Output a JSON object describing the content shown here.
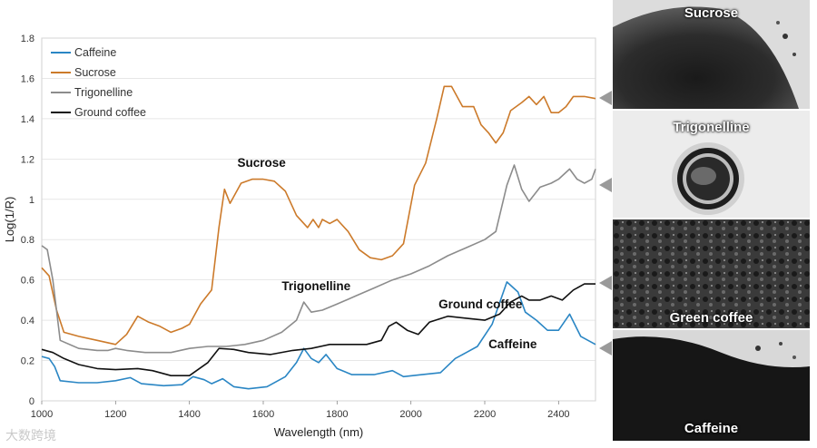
{
  "chart_data": {
    "type": "line",
    "xlabel": "Wavelength (nm)",
    "ylabel": "Log(1/R)",
    "xlim": [
      1000,
      2500
    ],
    "ylim": [
      0,
      1.8
    ],
    "xticks": [
      1000,
      1200,
      1400,
      1600,
      1800,
      2000,
      2200,
      2400
    ],
    "yticks": [
      0,
      0.2,
      0.4,
      0.6,
      0.8,
      1,
      1.2,
      1.4,
      1.6,
      1.8
    ],
    "ytick_labels": [
      "0",
      "0.2",
      "0.4",
      "0.6",
      "0.8",
      "1",
      "1.2",
      "1.4",
      "1.6",
      "1.8"
    ],
    "legend_position": "top-left",
    "series": [
      {
        "name": "Caffeine",
        "color": "#2a86c4",
        "points": [
          [
            1000,
            0.22
          ],
          [
            1020,
            0.21
          ],
          [
            1035,
            0.17
          ],
          [
            1050,
            0.1
          ],
          [
            1100,
            0.09
          ],
          [
            1150,
            0.09
          ],
          [
            1200,
            0.1
          ],
          [
            1240,
            0.115
          ],
          [
            1270,
            0.085
          ],
          [
            1330,
            0.075
          ],
          [
            1380,
            0.08
          ],
          [
            1410,
            0.12
          ],
          [
            1440,
            0.105
          ],
          [
            1460,
            0.085
          ],
          [
            1490,
            0.11
          ],
          [
            1520,
            0.07
          ],
          [
            1560,
            0.06
          ],
          [
            1610,
            0.07
          ],
          [
            1660,
            0.12
          ],
          [
            1690,
            0.19
          ],
          [
            1710,
            0.26
          ],
          [
            1730,
            0.21
          ],
          [
            1750,
            0.19
          ],
          [
            1770,
            0.23
          ],
          [
            1800,
            0.16
          ],
          [
            1840,
            0.13
          ],
          [
            1900,
            0.13
          ],
          [
            1950,
            0.15
          ],
          [
            1980,
            0.12
          ],
          [
            2030,
            0.13
          ],
          [
            2080,
            0.14
          ],
          [
            2120,
            0.21
          ],
          [
            2150,
            0.24
          ],
          [
            2180,
            0.27
          ],
          [
            2220,
            0.38
          ],
          [
            2260,
            0.59
          ],
          [
            2290,
            0.54
          ],
          [
            2310,
            0.44
          ],
          [
            2340,
            0.4
          ],
          [
            2370,
            0.35
          ],
          [
            2400,
            0.35
          ],
          [
            2430,
            0.43
          ],
          [
            2460,
            0.32
          ],
          [
            2500,
            0.28
          ]
        ]
      },
      {
        "name": "Sucrose",
        "color": "#cc7a2a",
        "points": [
          [
            1000,
            0.66
          ],
          [
            1020,
            0.62
          ],
          [
            1040,
            0.45
          ],
          [
            1060,
            0.34
          ],
          [
            1100,
            0.32
          ],
          [
            1150,
            0.3
          ],
          [
            1200,
            0.28
          ],
          [
            1230,
            0.33
          ],
          [
            1260,
            0.42
          ],
          [
            1290,
            0.39
          ],
          [
            1320,
            0.37
          ],
          [
            1350,
            0.34
          ],
          [
            1380,
            0.36
          ],
          [
            1400,
            0.38
          ],
          [
            1430,
            0.48
          ],
          [
            1460,
            0.55
          ],
          [
            1480,
            0.86
          ],
          [
            1495,
            1.05
          ],
          [
            1510,
            0.98
          ],
          [
            1540,
            1.08
          ],
          [
            1570,
            1.1
          ],
          [
            1600,
            1.1
          ],
          [
            1630,
            1.09
          ],
          [
            1660,
            1.04
          ],
          [
            1690,
            0.92
          ],
          [
            1720,
            0.86
          ],
          [
            1735,
            0.9
          ],
          [
            1750,
            0.86
          ],
          [
            1760,
            0.9
          ],
          [
            1780,
            0.88
          ],
          [
            1800,
            0.9
          ],
          [
            1830,
            0.84
          ],
          [
            1860,
            0.75
          ],
          [
            1890,
            0.71
          ],
          [
            1920,
            0.7
          ],
          [
            1950,
            0.72
          ],
          [
            1980,
            0.78
          ],
          [
            2010,
            1.07
          ],
          [
            2040,
            1.18
          ],
          [
            2070,
            1.4
          ],
          [
            2090,
            1.56
          ],
          [
            2110,
            1.56
          ],
          [
            2140,
            1.46
          ],
          [
            2170,
            1.46
          ],
          [
            2190,
            1.37
          ],
          [
            2210,
            1.33
          ],
          [
            2230,
            1.28
          ],
          [
            2250,
            1.33
          ],
          [
            2270,
            1.44
          ],
          [
            2300,
            1.48
          ],
          [
            2320,
            1.51
          ],
          [
            2340,
            1.47
          ],
          [
            2360,
            1.51
          ],
          [
            2380,
            1.43
          ],
          [
            2400,
            1.43
          ],
          [
            2420,
            1.46
          ],
          [
            2440,
            1.51
          ],
          [
            2470,
            1.51
          ],
          [
            2500,
            1.5
          ]
        ]
      },
      {
        "name": "Trigonelline",
        "color": "#8c8c8c",
        "points": [
          [
            1000,
            0.77
          ],
          [
            1015,
            0.75
          ],
          [
            1030,
            0.6
          ],
          [
            1050,
            0.3
          ],
          [
            1100,
            0.26
          ],
          [
            1150,
            0.25
          ],
          [
            1180,
            0.25
          ],
          [
            1200,
            0.26
          ],
          [
            1230,
            0.25
          ],
          [
            1280,
            0.24
          ],
          [
            1350,
            0.24
          ],
          [
            1400,
            0.26
          ],
          [
            1450,
            0.27
          ],
          [
            1500,
            0.27
          ],
          [
            1550,
            0.28
          ],
          [
            1600,
            0.3
          ],
          [
            1650,
            0.34
          ],
          [
            1690,
            0.4
          ],
          [
            1710,
            0.49
          ],
          [
            1730,
            0.44
          ],
          [
            1760,
            0.45
          ],
          [
            1800,
            0.48
          ],
          [
            1850,
            0.52
          ],
          [
            1900,
            0.56
          ],
          [
            1950,
            0.6
          ],
          [
            2000,
            0.63
          ],
          [
            2050,
            0.67
          ],
          [
            2100,
            0.72
          ],
          [
            2150,
            0.76
          ],
          [
            2200,
            0.8
          ],
          [
            2230,
            0.84
          ],
          [
            2260,
            1.07
          ],
          [
            2280,
            1.17
          ],
          [
            2300,
            1.05
          ],
          [
            2320,
            0.99
          ],
          [
            2350,
            1.06
          ],
          [
            2380,
            1.08
          ],
          [
            2400,
            1.1
          ],
          [
            2430,
            1.15
          ],
          [
            2450,
            1.1
          ],
          [
            2470,
            1.08
          ],
          [
            2490,
            1.1
          ],
          [
            2500,
            1.15
          ]
        ]
      },
      {
        "name": "Ground coffee",
        "color": "#111111",
        "points": [
          [
            1000,
            0.255
          ],
          [
            1030,
            0.24
          ],
          [
            1060,
            0.21
          ],
          [
            1100,
            0.18
          ],
          [
            1150,
            0.16
          ],
          [
            1200,
            0.155
          ],
          [
            1260,
            0.16
          ],
          [
            1300,
            0.15
          ],
          [
            1350,
            0.125
          ],
          [
            1400,
            0.125
          ],
          [
            1450,
            0.19
          ],
          [
            1480,
            0.26
          ],
          [
            1520,
            0.255
          ],
          [
            1560,
            0.24
          ],
          [
            1620,
            0.23
          ],
          [
            1680,
            0.25
          ],
          [
            1730,
            0.26
          ],
          [
            1780,
            0.28
          ],
          [
            1830,
            0.28
          ],
          [
            1880,
            0.28
          ],
          [
            1920,
            0.3
          ],
          [
            1940,
            0.37
          ],
          [
            1960,
            0.39
          ],
          [
            1990,
            0.35
          ],
          [
            2020,
            0.33
          ],
          [
            2050,
            0.39
          ],
          [
            2100,
            0.42
          ],
          [
            2150,
            0.41
          ],
          [
            2200,
            0.4
          ],
          [
            2240,
            0.43
          ],
          [
            2270,
            0.49
          ],
          [
            2300,
            0.52
          ],
          [
            2320,
            0.5
          ],
          [
            2350,
            0.5
          ],
          [
            2380,
            0.52
          ],
          [
            2410,
            0.5
          ],
          [
            2440,
            0.55
          ],
          [
            2470,
            0.58
          ],
          [
            2500,
            0.58
          ]
        ]
      }
    ],
    "annotations": [
      {
        "text": "Sucrose",
        "x": 1530,
        "y": 1.16
      },
      {
        "text": "Trigonelline",
        "x": 1650,
        "y": 0.55
      },
      {
        "text": "Ground coffee",
        "x": 2075,
        "y": 0.46
      },
      {
        "text": "Caffeine",
        "x": 2210,
        "y": 0.26
      }
    ]
  },
  "panels": [
    {
      "label": "Sucrose"
    },
    {
      "label": "Trigonelline"
    },
    {
      "label": "Green coffee"
    },
    {
      "label": "Caffeine"
    }
  ],
  "watermark": "大数跨境",
  "colors": {
    "panel_arrow": "#9a9a9a",
    "gridline": "#d9d9d9"
  }
}
